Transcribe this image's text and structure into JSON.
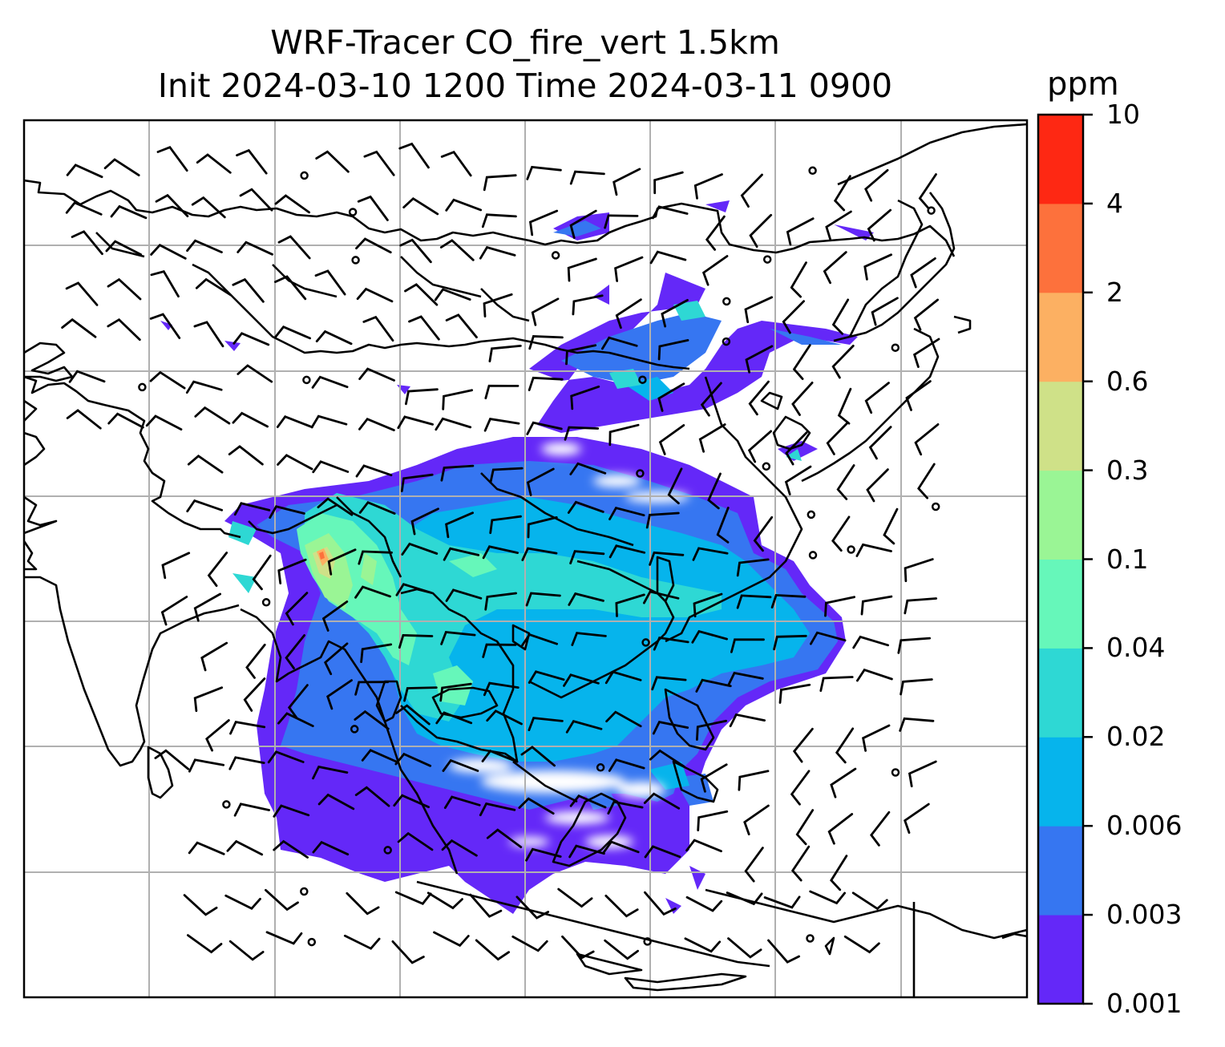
{
  "title": {
    "line1": "WRF-Tracer CO_fire_vert 1.5km",
    "line2": "Init 2024-03-10 1200 Time 2024-03-11 0900"
  },
  "colorbar": {
    "unit": "ppm",
    "levels": [
      "0.001",
      "0.003",
      "0.006",
      "0.02",
      "0.04",
      "0.1",
      "0.3",
      "0.6",
      "2",
      "4",
      "10"
    ],
    "colors": [
      "#6428f8",
      "#3676f1",
      "#06b4ec",
      "#2ed8d4",
      "#66f7ba",
      "#9af595",
      "#cfe188",
      "#fcb062",
      "#fd713c",
      "#fe2813"
    ]
  },
  "map": {
    "gridlines": true,
    "land_outline_color": "#000000",
    "gridline_color": "#b0b0b0",
    "wind_barb_color": "#000000"
  }
}
